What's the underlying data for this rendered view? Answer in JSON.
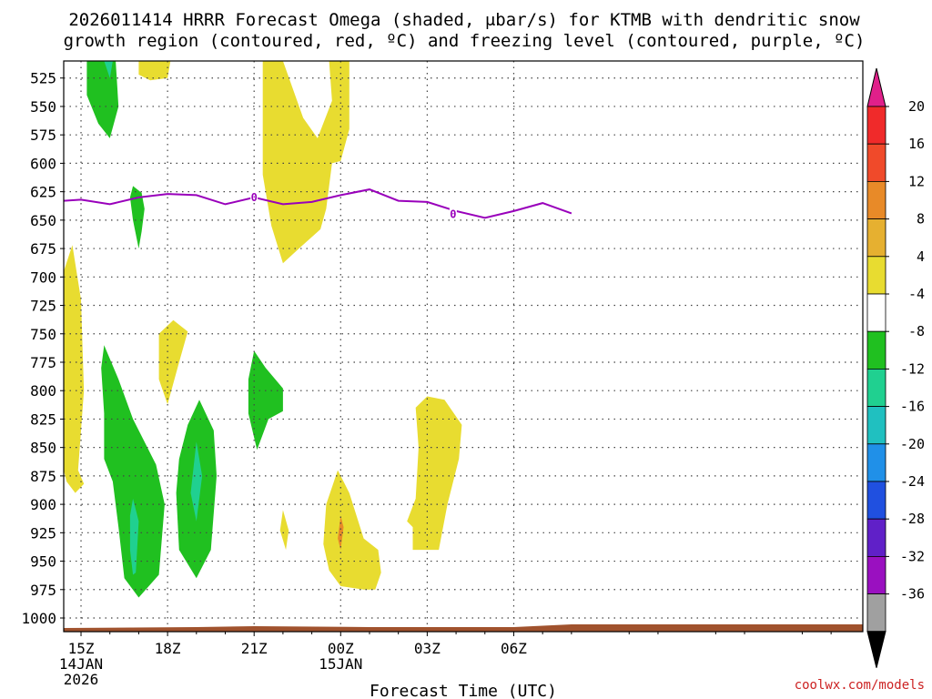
{
  "chart_data": {
    "type": "contour-cross-section",
    "title_line1": "2026011414 HRRR Forecast Omega (shaded, μbar/s) for KTMB with dendritic snow",
    "title_line2": "growth region (contoured, red, ºC) and freezing level (contoured, purple, ºC)",
    "xlabel": "Forecast Time (UTC)",
    "credit": "coolwx.com/models",
    "x_range_hours": [
      -0.6,
      27.1
    ],
    "y_range_hPa": [
      510,
      1012
    ],
    "pressure_levels": [
      525,
      550,
      575,
      600,
      625,
      650,
      675,
      700,
      725,
      750,
      775,
      800,
      825,
      850,
      875,
      900,
      925,
      950,
      975,
      1000
    ],
    "x_ticks": [
      {
        "hour": 0,
        "label": "15Z",
        "sub1": "14JAN",
        "sub2": "2026"
      },
      {
        "hour": 3,
        "label": "18Z",
        "sub1": "",
        "sub2": ""
      },
      {
        "hour": 6,
        "label": "21Z",
        "sub1": "",
        "sub2": ""
      },
      {
        "hour": 9,
        "label": "00Z",
        "sub1": "15JAN",
        "sub2": ""
      },
      {
        "hour": 12,
        "label": "03Z",
        "sub1": "",
        "sub2": ""
      },
      {
        "hour": 15,
        "label": "06Z",
        "sub1": "",
        "sub2": ""
      }
    ],
    "colorbar": {
      "labels": [
        "20",
        "16",
        "12",
        "8",
        "4",
        "-4",
        "-8",
        "-12",
        "-16",
        "-20",
        "-24",
        "-28",
        "-32",
        "-36"
      ],
      "segments": [
        {
          "color": "#f02a2a"
        },
        {
          "color": "#f04a2a"
        },
        {
          "color": "#e88a28"
        },
        {
          "color": "#e6b030"
        },
        {
          "color": "#e8dc30"
        },
        {
          "color": "#ffffff"
        },
        {
          "color": "#20c020"
        },
        {
          "color": "#20d090"
        },
        {
          "color": "#20c0c0"
        },
        {
          "color": "#2090e8"
        },
        {
          "color": "#2050e0"
        },
        {
          "color": "#6020c8"
        },
        {
          "color": "#9a10c0"
        },
        {
          "color": "#a0a0a0"
        }
      ],
      "top_arrow_color": "#e0208a",
      "bottom_arrow_color": "#000000"
    },
    "freezing_level": {
      "color": "#9900bb",
      "contour_value": "0",
      "points": [
        {
          "h": -0.6,
          "p": 633
        },
        {
          "h": 0.0,
          "p": 632
        },
        {
          "h": 1.0,
          "p": 636
        },
        {
          "h": 2.0,
          "p": 630
        },
        {
          "h": 3.0,
          "p": 627
        },
        {
          "h": 4.0,
          "p": 628
        },
        {
          "h": 5.0,
          "p": 636
        },
        {
          "h": 6.0,
          "p": 630
        },
        {
          "h": 7.0,
          "p": 636
        },
        {
          "h": 8.0,
          "p": 634
        },
        {
          "h": 9.0,
          "p": 628
        },
        {
          "h": 10.0,
          "p": 623
        },
        {
          "h": 11.0,
          "p": 633
        },
        {
          "h": 12.0,
          "p": 634
        },
        {
          "h": 13.0,
          "p": 642
        },
        {
          "h": 14.0,
          "p": 648
        },
        {
          "h": 15.0,
          "p": 642
        },
        {
          "h": 16.0,
          "p": 635
        },
        {
          "h": 17.0,
          "p": 644
        }
      ],
      "label_positions": [
        {
          "h": 6.0,
          "p": 630
        },
        {
          "h": 12.9,
          "p": 645
        }
      ]
    },
    "omega_regions": [
      {
        "value": -6,
        "color": "#20c020",
        "points": [
          [
            0.2,
            510
          ],
          [
            1.2,
            510
          ],
          [
            1.3,
            550
          ],
          [
            1.0,
            578
          ],
          [
            0.6,
            565
          ],
          [
            0.2,
            540
          ]
        ]
      },
      {
        "value": -10,
        "color": "#20d090",
        "points": [
          [
            0.8,
            510
          ],
          [
            1.1,
            510
          ],
          [
            1.0,
            525
          ]
        ]
      },
      {
        "value": 6,
        "color": "#e8dc30",
        "points": [
          [
            2.0,
            510
          ],
          [
            3.1,
            510
          ],
          [
            3.0,
            525
          ],
          [
            2.4,
            527
          ],
          [
            2.0,
            522
          ]
        ]
      },
      {
        "value": 6,
        "color": "#e8dc30",
        "points": [
          [
            6.3,
            510
          ],
          [
            7.0,
            510
          ],
          [
            7.7,
            560
          ],
          [
            8.2,
            578
          ],
          [
            8.7,
            545
          ],
          [
            8.6,
            510
          ],
          [
            9.3,
            510
          ],
          [
            9.3,
            570
          ],
          [
            9.0,
            598
          ],
          [
            8.7,
            600
          ],
          [
            8.5,
            640
          ],
          [
            8.3,
            658
          ],
          [
            7.6,
            674
          ],
          [
            7.0,
            688
          ],
          [
            6.6,
            655
          ],
          [
            6.3,
            610
          ],
          [
            6.3,
            575
          ]
        ]
      },
      {
        "value": -6,
        "color": "#20c020",
        "points": [
          [
            1.8,
            620
          ],
          [
            2.1,
            626
          ],
          [
            2.2,
            640
          ],
          [
            2.1,
            660
          ],
          [
            2.0,
            675
          ],
          [
            1.8,
            650
          ],
          [
            1.7,
            630
          ]
        ]
      },
      {
        "value": 6,
        "color": "#e8dc30",
        "points": [
          [
            -0.6,
            870
          ],
          [
            -0.6,
            695
          ],
          [
            -0.3,
            672
          ],
          [
            0.0,
            720
          ],
          [
            0.1,
            800
          ],
          [
            -0.1,
            870
          ],
          [
            0.1,
            882
          ],
          [
            -0.2,
            890
          ],
          [
            -0.5,
            880
          ]
        ]
      },
      {
        "value": 6,
        "color": "#e8dc30",
        "points": [
          [
            2.7,
            750
          ],
          [
            3.2,
            738
          ],
          [
            3.7,
            748
          ],
          [
            3.4,
            775
          ],
          [
            3.0,
            812
          ],
          [
            2.7,
            790
          ]
        ]
      },
      {
        "value": -6,
        "color": "#20c020",
        "points": [
          [
            0.8,
            760
          ],
          [
            1.3,
            790
          ],
          [
            1.8,
            825
          ],
          [
            2.6,
            865
          ],
          [
            2.9,
            900
          ],
          [
            2.7,
            962
          ],
          [
            2.0,
            982
          ],
          [
            1.5,
            965
          ],
          [
            1.3,
            920
          ],
          [
            1.1,
            880
          ],
          [
            0.8,
            860
          ],
          [
            0.8,
            820
          ],
          [
            0.7,
            780
          ]
        ]
      },
      {
        "value": -10,
        "color": "#20d090",
        "points": [
          [
            1.8,
            895
          ],
          [
            2.0,
            915
          ],
          [
            1.9,
            960
          ],
          [
            1.8,
            962
          ],
          [
            1.7,
            940
          ],
          [
            1.7,
            910
          ]
        ]
      },
      {
        "value": -6,
        "color": "#20c020",
        "points": [
          [
            4.1,
            808
          ],
          [
            4.6,
            835
          ],
          [
            4.7,
            875
          ],
          [
            4.5,
            940
          ],
          [
            4.0,
            965
          ],
          [
            3.4,
            940
          ],
          [
            3.3,
            890
          ],
          [
            3.4,
            860
          ],
          [
            3.7,
            830
          ]
        ]
      },
      {
        "value": -10,
        "color": "#20d090",
        "points": [
          [
            4.0,
            845
          ],
          [
            4.2,
            875
          ],
          [
            4.0,
            915
          ],
          [
            3.8,
            890
          ]
        ]
      },
      {
        "value": -6,
        "color": "#20c020",
        "points": [
          [
            5.8,
            790
          ],
          [
            6.0,
            765
          ],
          [
            6.4,
            780
          ],
          [
            7.0,
            798
          ],
          [
            7.0,
            818
          ],
          [
            6.5,
            825
          ],
          [
            6.1,
            852
          ],
          [
            5.8,
            820
          ]
        ]
      },
      {
        "value": 6,
        "color": "#e8dc30",
        "points": [
          [
            8.9,
            870
          ],
          [
            9.3,
            890
          ],
          [
            9.8,
            930
          ],
          [
            10.3,
            940
          ],
          [
            10.4,
            960
          ],
          [
            10.2,
            975
          ],
          [
            9.8,
            975
          ],
          [
            9.0,
            972
          ],
          [
            8.6,
            958
          ],
          [
            8.4,
            935
          ],
          [
            8.5,
            900
          ]
        ]
      },
      {
        "value": 10,
        "color": "#e88a28",
        "points": [
          [
            9.0,
            910
          ],
          [
            9.1,
            920
          ],
          [
            9.0,
            940
          ],
          [
            8.9,
            930
          ]
        ]
      },
      {
        "value": 6,
        "color": "#e8dc30",
        "points": [
          [
            7.0,
            905
          ],
          [
            7.2,
            923
          ],
          [
            7.1,
            940
          ],
          [
            6.9,
            923
          ]
        ]
      },
      {
        "value": 6,
        "color": "#e8dc30",
        "points": [
          [
            11.6,
            815
          ],
          [
            12.0,
            805
          ],
          [
            12.6,
            808
          ],
          [
            13.2,
            830
          ],
          [
            13.1,
            860
          ],
          [
            12.7,
            900
          ],
          [
            12.4,
            940
          ],
          [
            11.5,
            940
          ],
          [
            11.5,
            920
          ],
          [
            11.3,
            915
          ],
          [
            11.6,
            895
          ],
          [
            11.7,
            850
          ]
        ]
      }
    ],
    "terrain": {
      "color": "#a0522d",
      "min_surface_hPa": 1004
    }
  }
}
